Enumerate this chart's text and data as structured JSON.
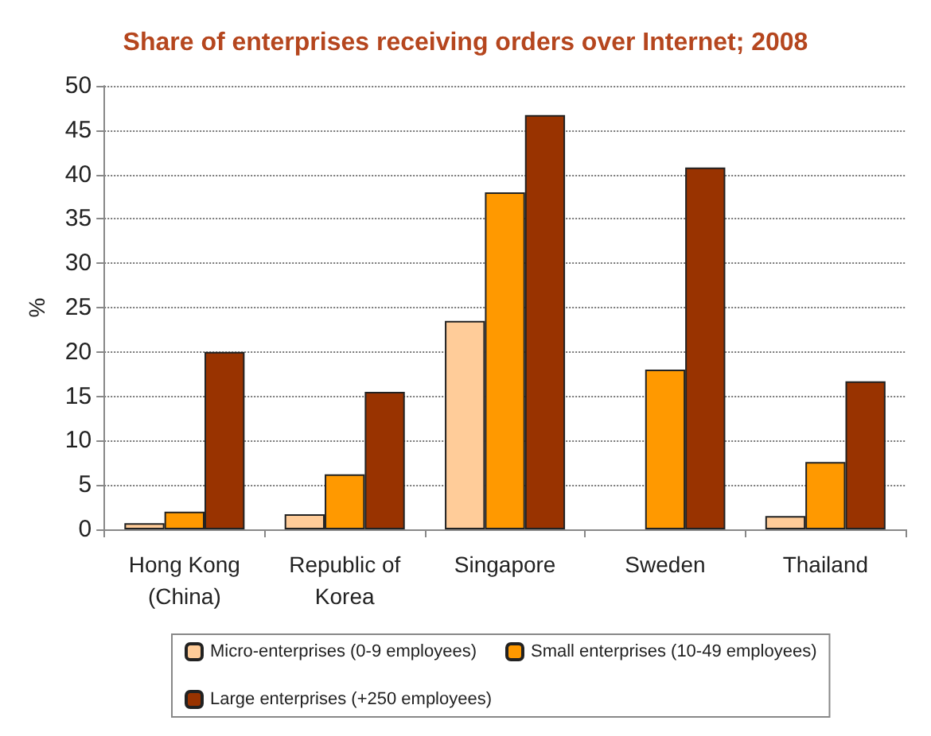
{
  "chart_data": {
    "type": "bar",
    "title": "Share of enterprises receiving orders over Internet; 2008",
    "ylabel": "%",
    "categories": [
      "Hong Kong\n(China)",
      "Republic of\nKorea",
      "Singapore",
      "Sweden",
      "Thailand"
    ],
    "series": [
      {
        "name": "Micro-enterprises (0-9 employees)",
        "color": "#ffcc99",
        "values": [
          0.7,
          1.7,
          23.5,
          null,
          1.5
        ]
      },
      {
        "name": "Small enterprises (10-49 employees)",
        "color": "#ff9900",
        "values": [
          2.0,
          6.2,
          38,
          18,
          7.6
        ]
      },
      {
        "name": "Large enterprises (+250 employees)",
        "color": "#993300",
        "values": [
          20,
          15.5,
          46.7,
          40.8,
          16.7
        ]
      }
    ],
    "ylim": [
      0,
      50
    ],
    "yticks": [
      0,
      5,
      10,
      15,
      20,
      25,
      30,
      35,
      40,
      45,
      50
    ],
    "grid": "y",
    "legend": "bottom"
  }
}
